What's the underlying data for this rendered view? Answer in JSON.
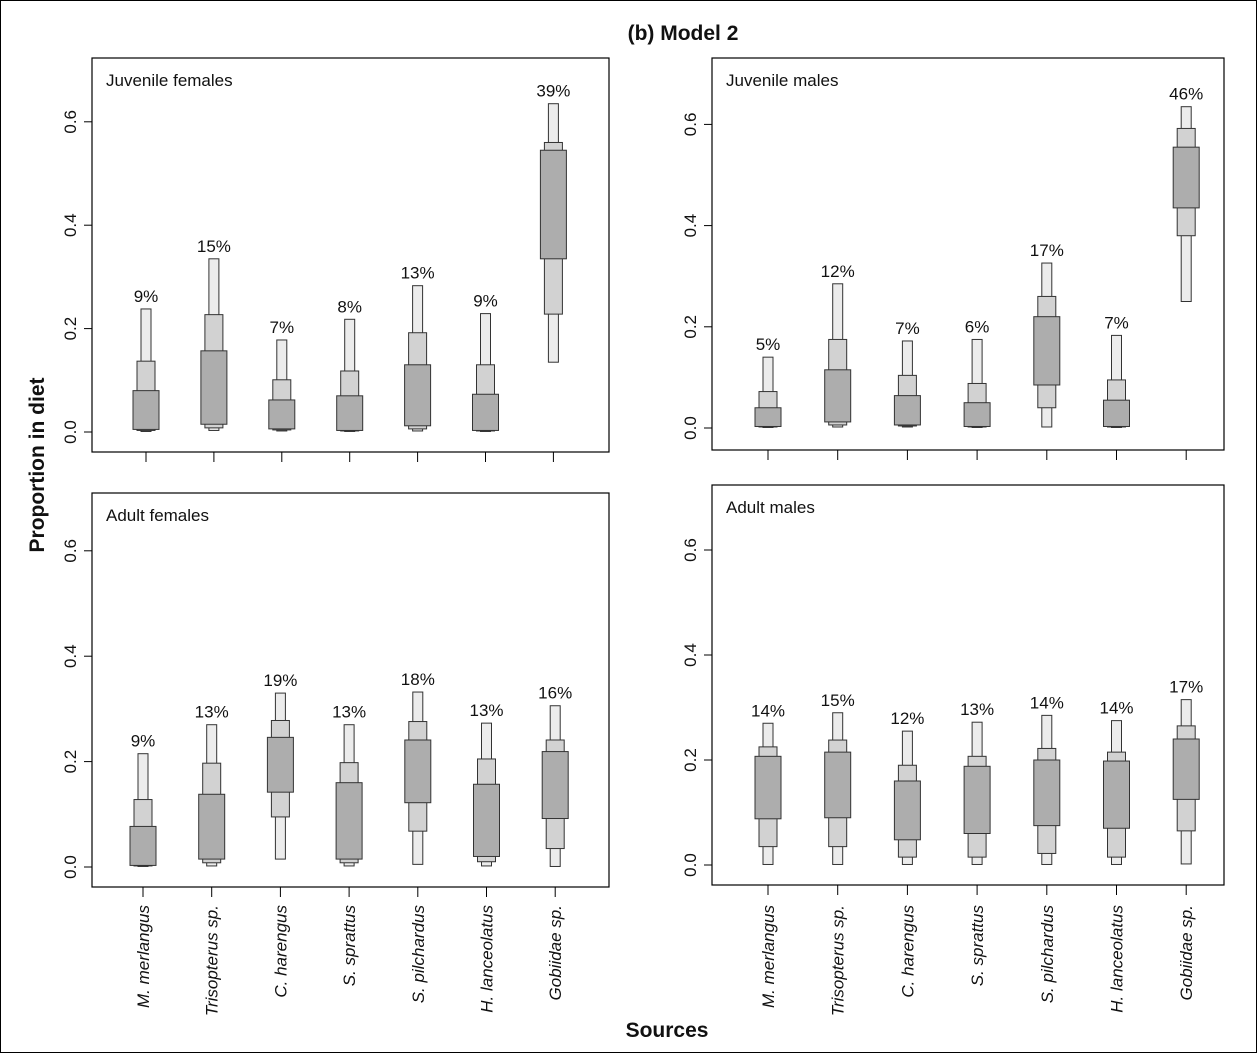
{
  "title": "(b) Model 2",
  "ylabel": "Proportion in diet",
  "xlabel": "Sources",
  "sources": [
    "M. merlangus",
    "Trisopterus sp.",
    "C. harengus",
    "S. sprattus",
    "S. pilchardus",
    "H. lanceolatus",
    "Gobiidae sp."
  ],
  "colors": {
    "outer": "#ececec",
    "middle": "#d2d2d2",
    "inner": "#adadad",
    "stroke": "#333333"
  },
  "chart_data": [
    {
      "type": "box",
      "title": "Juvenile females",
      "yticks": [
        "0.0",
        "0.2",
        "0.4",
        "0.6"
      ],
      "ylim": [
        0,
        0.65
      ],
      "percent_labels": [
        "9%",
        "15%",
        "7%",
        "8%",
        "13%",
        "9%",
        "39%"
      ],
      "credible_intervals": [
        {
          "source": "M. merlangus",
          "outer": [
            0.001,
            0.238
          ],
          "middle": [
            0.003,
            0.137
          ],
          "inner": [
            0.005,
            0.08
          ]
        },
        {
          "source": "Trisopterus sp.",
          "outer": [
            0.003,
            0.335
          ],
          "middle": [
            0.008,
            0.227
          ],
          "inner": [
            0.015,
            0.157
          ]
        },
        {
          "source": "C. harengus",
          "outer": [
            0.002,
            0.178
          ],
          "middle": [
            0.004,
            0.101
          ],
          "inner": [
            0.006,
            0.062
          ]
        },
        {
          "source": "S. sprattus",
          "outer": [
            0.001,
            0.218
          ],
          "middle": [
            0.002,
            0.118
          ],
          "inner": [
            0.003,
            0.07
          ]
        },
        {
          "source": "S. pilchardus",
          "outer": [
            0.002,
            0.283
          ],
          "middle": [
            0.006,
            0.192
          ],
          "inner": [
            0.012,
            0.13
          ]
        },
        {
          "source": "H. lanceolatus",
          "outer": [
            0.001,
            0.229
          ],
          "middle": [
            0.002,
            0.13
          ],
          "inner": [
            0.003,
            0.073
          ]
        },
        {
          "source": "Gobiidae sp.",
          "outer": [
            0.135,
            0.635
          ],
          "middle": [
            0.228,
            0.56
          ],
          "inner": [
            0.335,
            0.545
          ]
        }
      ]
    },
    {
      "type": "box",
      "title": "Juvenile males",
      "yticks": [
        "0.0",
        "0.2",
        "0.4",
        "0.6"
      ],
      "ylim": [
        0,
        0.65
      ],
      "percent_labels": [
        "5%",
        "12%",
        "7%",
        "6%",
        "17%",
        "7%",
        "46%"
      ],
      "credible_intervals": [
        {
          "source": "M. merlangus",
          "outer": [
            0.001,
            0.14
          ],
          "middle": [
            0.002,
            0.072
          ],
          "inner": [
            0.003,
            0.04
          ]
        },
        {
          "source": "Trisopterus sp.",
          "outer": [
            0.002,
            0.285
          ],
          "middle": [
            0.006,
            0.175
          ],
          "inner": [
            0.012,
            0.115
          ]
        },
        {
          "source": "C. harengus",
          "outer": [
            0.002,
            0.172
          ],
          "middle": [
            0.004,
            0.104
          ],
          "inner": [
            0.006,
            0.064
          ]
        },
        {
          "source": "S. sprattus",
          "outer": [
            0.001,
            0.175
          ],
          "middle": [
            0.002,
            0.088
          ],
          "inner": [
            0.003,
            0.05
          ]
        },
        {
          "source": "S. pilchardus",
          "outer": [
            0.002,
            0.326
          ],
          "middle": [
            0.04,
            0.26
          ],
          "inner": [
            0.085,
            0.22
          ]
        },
        {
          "source": "H. lanceolatus",
          "outer": [
            0.001,
            0.183
          ],
          "middle": [
            0.002,
            0.095
          ],
          "inner": [
            0.003,
            0.055
          ]
        },
        {
          "source": "Gobiidae sp.",
          "outer": [
            0.25,
            0.635
          ],
          "middle": [
            0.38,
            0.592
          ],
          "inner": [
            0.435,
            0.555
          ]
        }
      ]
    },
    {
      "type": "box",
      "title": "Adult females",
      "yticks": [
        "0.0",
        "0.2",
        "0.4",
        "0.6"
      ],
      "ylim": [
        0,
        0.65
      ],
      "percent_labels": [
        "9%",
        "13%",
        "19%",
        "13%",
        "18%",
        "13%",
        "16%"
      ],
      "credible_intervals": [
        {
          "source": "M. merlangus",
          "outer": [
            0.001,
            0.215
          ],
          "middle": [
            0.002,
            0.128
          ],
          "inner": [
            0.003,
            0.077
          ]
        },
        {
          "source": "Trisopterus sp.",
          "outer": [
            0.002,
            0.27
          ],
          "middle": [
            0.008,
            0.197
          ],
          "inner": [
            0.015,
            0.138
          ]
        },
        {
          "source": "C. harengus",
          "outer": [
            0.015,
            0.33
          ],
          "middle": [
            0.095,
            0.278
          ],
          "inner": [
            0.142,
            0.246
          ]
        },
        {
          "source": "S. sprattus",
          "outer": [
            0.002,
            0.27
          ],
          "middle": [
            0.008,
            0.198
          ],
          "inner": [
            0.015,
            0.16
          ]
        },
        {
          "source": "S. pilchardus",
          "outer": [
            0.005,
            0.332
          ],
          "middle": [
            0.068,
            0.276
          ],
          "inner": [
            0.122,
            0.241
          ]
        },
        {
          "source": "H. lanceolatus",
          "outer": [
            0.002,
            0.273
          ],
          "middle": [
            0.01,
            0.205
          ],
          "inner": [
            0.02,
            0.157
          ]
        },
        {
          "source": "Gobiidae sp.",
          "outer": [
            0.001,
            0.306
          ],
          "middle": [
            0.035,
            0.241
          ],
          "inner": [
            0.092,
            0.219
          ]
        }
      ]
    },
    {
      "type": "box",
      "title": "Adult males",
      "yticks": [
        "0.0",
        "0.2",
        "0.4",
        "0.6"
      ],
      "ylim": [
        0,
        0.65
      ],
      "percent_labels": [
        "14%",
        "15%",
        "12%",
        "13%",
        "14%",
        "14%",
        "17%"
      ],
      "credible_intervals": [
        {
          "source": "M. merlangus",
          "outer": [
            0.001,
            0.27
          ],
          "middle": [
            0.035,
            0.225
          ],
          "inner": [
            0.088,
            0.207
          ]
        },
        {
          "source": "Trisopterus sp.",
          "outer": [
            0.001,
            0.29
          ],
          "middle": [
            0.035,
            0.238
          ],
          "inner": [
            0.09,
            0.215
          ]
        },
        {
          "source": "C. harengus",
          "outer": [
            0.001,
            0.255
          ],
          "middle": [
            0.015,
            0.19
          ],
          "inner": [
            0.048,
            0.16
          ]
        },
        {
          "source": "S. sprattus",
          "outer": [
            0.001,
            0.272
          ],
          "middle": [
            0.015,
            0.207
          ],
          "inner": [
            0.06,
            0.188
          ]
        },
        {
          "source": "S. pilchardus",
          "outer": [
            0.001,
            0.285
          ],
          "middle": [
            0.022,
            0.222
          ],
          "inner": [
            0.075,
            0.2
          ]
        },
        {
          "source": "H. lanceolatus",
          "outer": [
            0.001,
            0.275
          ],
          "middle": [
            0.015,
            0.215
          ],
          "inner": [
            0.07,
            0.198
          ]
        },
        {
          "source": "Gobiidae sp.",
          "outer": [
            0.002,
            0.315
          ],
          "middle": [
            0.065,
            0.265
          ],
          "inner": [
            0.125,
            0.24
          ]
        }
      ]
    }
  ]
}
